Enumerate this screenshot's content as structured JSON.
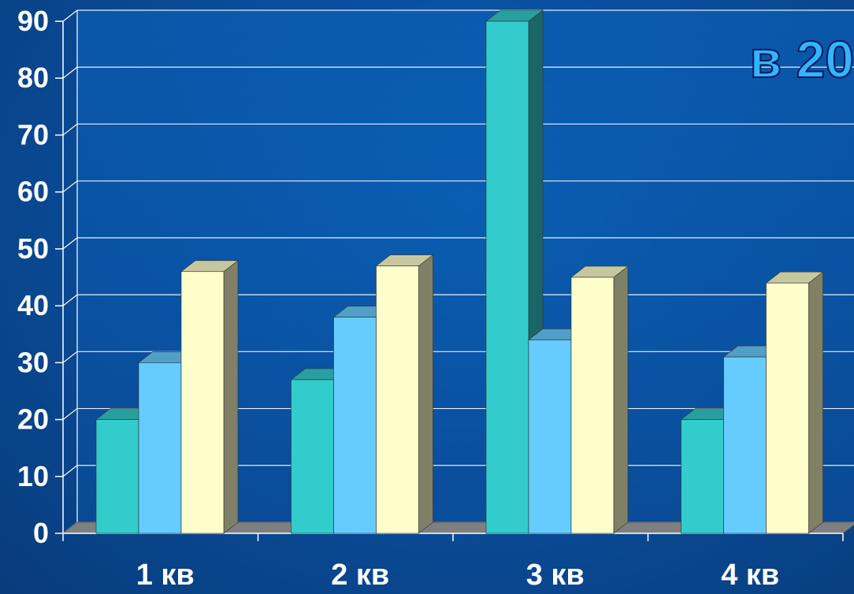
{
  "chart_data": {
    "type": "bar",
    "categories": [
      "1 кв",
      "2 кв",
      "3 кв",
      "4 кв"
    ],
    "series": [
      {
        "values": [
          20,
          27,
          90,
          20
        ],
        "color": "#33cccc"
      },
      {
        "values": [
          30,
          38,
          34,
          31
        ],
        "color": "#66ccff"
      },
      {
        "values": [
          46,
          47,
          45,
          44
        ],
        "color": "#ffffcc"
      }
    ],
    "ylim": [
      0,
      90
    ],
    "yticks": [
      "0",
      "10",
      "20",
      "30",
      "40",
      "50",
      "60",
      "70",
      "80",
      "90"
    ],
    "grid": true,
    "view": "3d-clustered"
  },
  "banner": {
    "text": "в 20",
    "color": "#33b4ff"
  }
}
